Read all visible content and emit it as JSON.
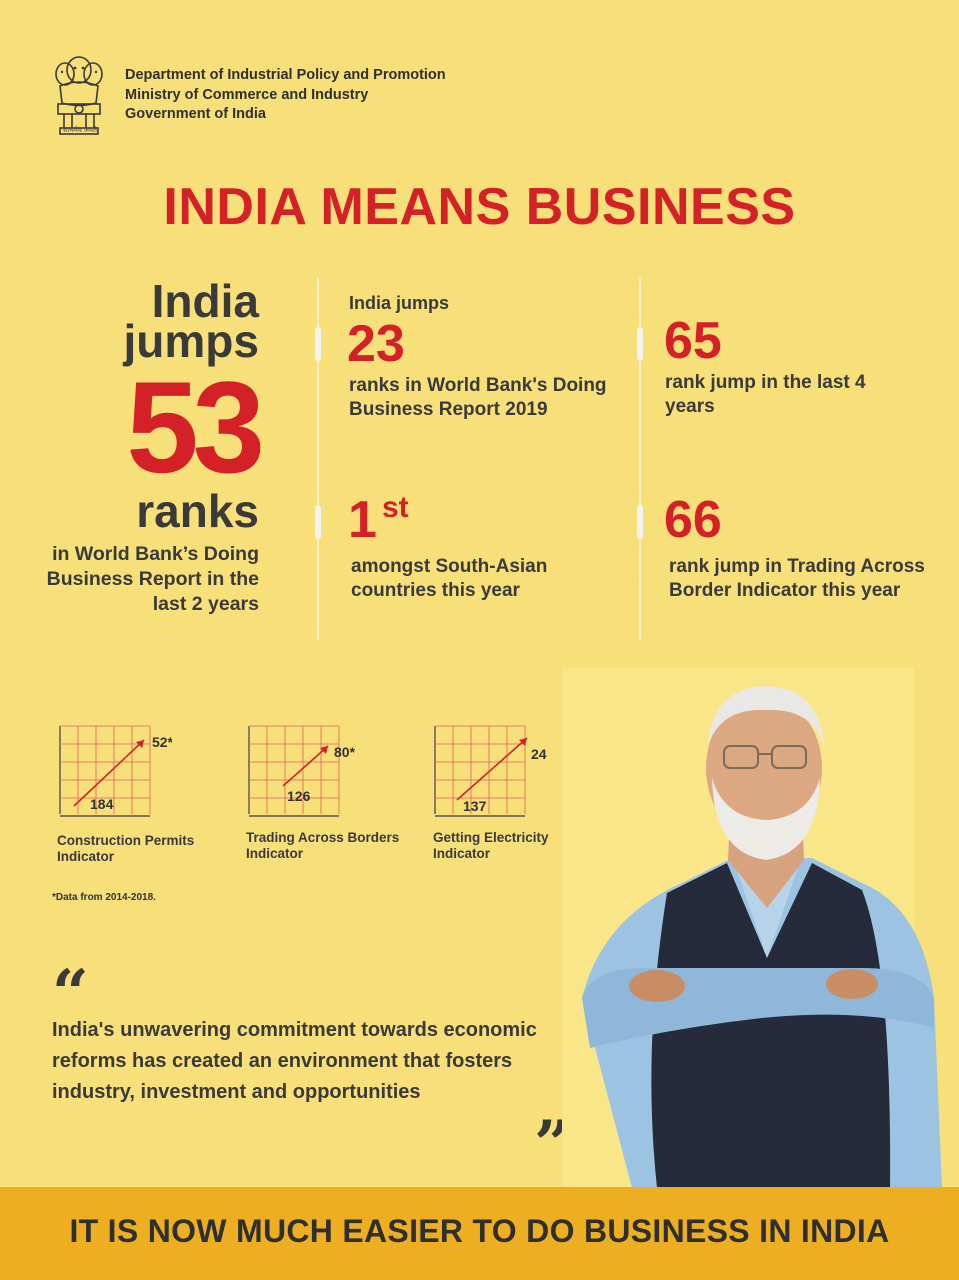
{
  "header": {
    "emblem_motto": "सत्यमेव जयते",
    "dept_lines": [
      "Department of Industrial Policy and Promotion",
      "Ministry of Commerce and Industry",
      "Government of India"
    ]
  },
  "title": "INDIA MEANS BUSINESS",
  "main_stat": {
    "line1": "India",
    "line2": "jumps",
    "number": "53",
    "unit": "ranks",
    "desc": "in World Bank’s Doing Business Report in the last 2 years"
  },
  "stats": [
    {
      "pre": "India jumps",
      "number": "23",
      "desc": "ranks in World Bank's Doing Business Report 2019"
    },
    {
      "number": "65",
      "desc": "rank jump in the last 4 years"
    },
    {
      "number": "1",
      "sup": "st",
      "desc": "amongst South-Asian countries this year"
    },
    {
      "number": "66",
      "desc": "rank jump in Trading Across Border Indicator this year"
    }
  ],
  "mini_charts": [
    {
      "label": "Construction Permits Indicator",
      "from": "184",
      "to": "52*"
    },
    {
      "label": "Trading Across Borders Indicator",
      "from": "126",
      "to": "80*"
    },
    {
      "label": "Getting Electricity Indicator",
      "from": "137",
      "to": "24*"
    }
  ],
  "footnote": "*Data from 2014-2018.",
  "quote": {
    "open": "“",
    "text": "India's unwavering commitment towards economic reforms has created an environment that fosters industry, investment and opportunities",
    "close": "”"
  },
  "banner": "IT IS NOW MUCH EASIER TO DO BUSINESS IN INDIA",
  "colors": {
    "background": "#f7df7a",
    "accent_red": "#d42027",
    "banner": "#eeae22",
    "text_dark": "#3a3a3a"
  },
  "icons": [
    "national-emblem-icon",
    "portrait-image",
    "quote-open-icon",
    "quote-close-icon"
  ]
}
